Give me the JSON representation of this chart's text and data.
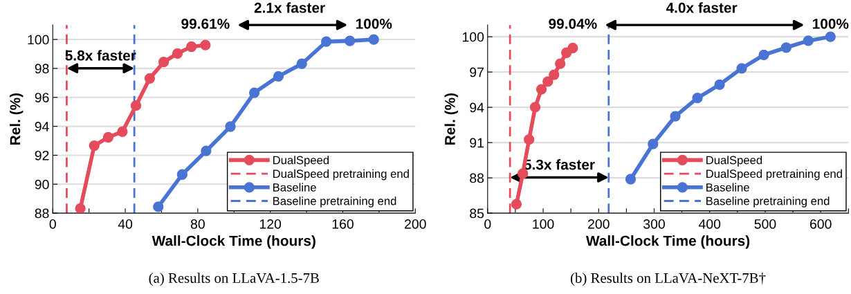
{
  "chart_data": [
    {
      "type": "line",
      "xlabel": "Wall-Clock Time (hours)",
      "ylabel": "Rel. (%)",
      "series": [
        {
          "name": "DualSpeed",
          "color": "#e44c5c",
          "x": [
            15.2,
            22.9,
            30.6,
            38.4,
            45.9,
            53.5,
            61.2,
            68.8,
            76.5,
            84.2
          ],
          "values": [
            88.32,
            92.66,
            93.24,
            93.63,
            95.43,
            97.31,
            98.44,
            99.03,
            99.5,
            99.61
          ]
        },
        {
          "name": "DualSpeed pretraining end",
          "color": "#e44c5c",
          "line_style": "dashed",
          "marker": "none",
          "x": [
            7.7,
            7.7
          ],
          "values": [
            88,
            101
          ]
        },
        {
          "name": "Baseline",
          "color": "#4a74d4",
          "x": [
            58.2,
            71.4,
            84.6,
            98.0,
            111.2,
            124.5,
            137.4,
            150.9,
            163.9,
            177.1
          ],
          "values": [
            88.44,
            90.67,
            92.3,
            93.98,
            96.32,
            97.45,
            98.32,
            99.85,
            99.9,
            100.0
          ]
        },
        {
          "name": "Baseline pretraining end",
          "color": "#4a74d4",
          "line_style": "dashed",
          "marker": "none",
          "x": [
            45.0,
            45.0
          ],
          "values": [
            88,
            101
          ]
        }
      ],
      "annotations": [
        "99.61%",
        "100%",
        "2.1x faster",
        "5.8x faster",
        "(a) Results on LLaVA-1.5-7B"
      ],
      "xlim": [
        0,
        200
      ],
      "ylim": [
        88,
        101
      ],
      "xticks": [
        0,
        {
          "value": 20,
          "label": null
        },
        40,
        {
          "value": 60,
          "label": null
        },
        80,
        {
          "value": 100,
          "label": null
        },
        120,
        {
          "value": 140,
          "label": null
        },
        160,
        {
          "value": 180,
          "label": null
        },
        200
      ],
      "yticks": [
        88,
        90,
        92,
        94,
        96,
        98,
        100
      ],
      "grid": "y",
      "legend": "bottom right",
      "marker": "circle",
      "line_style": "solid"
    },
    {
      "type": "line",
      "xlabel": "Wall-Clock Time (hours)",
      "ylabel": "Rel. (%)",
      "series": [
        {
          "name": "DualSpeed",
          "color": "#e44c5c",
          "x": [
            51.9,
            63.4,
            74.6,
            85.7,
            96.9,
            108.4,
            119.6,
            130.7,
            141.9,
            153.4
          ],
          "values": [
            85.76,
            88.37,
            91.26,
            94.01,
            95.53,
            96.19,
            96.77,
            97.71,
            98.64,
            99.04
          ]
        },
        {
          "name": "DualSpeed pretraining end",
          "color": "#e44c5c",
          "line_style": "dashed",
          "marker": "none",
          "x": [
            40.3,
            40.3
          ],
          "values": [
            85,
            101
          ]
        },
        {
          "name": "Baseline",
          "color": "#4a74d4",
          "x": [
            257.6,
            297.9,
            338.1,
            378.0,
            417.9,
            457.7,
            497.6,
            537.9,
            577.7,
            617.6
          ],
          "values": [
            87.89,
            90.88,
            93.24,
            94.79,
            95.93,
            97.31,
            98.46,
            99.08,
            99.66,
            100.0
          ]
        },
        {
          "name": "Baseline pretraining end",
          "color": "#4a74d4",
          "line_style": "dashed",
          "marker": "none",
          "x": [
            218.1,
            218.1
          ],
          "values": [
            85,
            101
          ]
        }
      ],
      "annotations": [
        "99.04%",
        "100%",
        "4.0x faster",
        "5.3x faster",
        "(b) Results on LLaVA-NeXT-7B†"
      ],
      "xlim": [
        0,
        650
      ],
      "ylim": [
        85,
        101
      ],
      "xticks": [
        0,
        {
          "value": 50,
          "label": null
        },
        100,
        {
          "value": 150,
          "label": null
        },
        200,
        {
          "value": 250,
          "label": null
        },
        300,
        {
          "value": 350,
          "label": null
        },
        400,
        {
          "value": 450,
          "label": null
        },
        500,
        {
          "value": 550,
          "label": null
        },
        600,
        {
          "value": 650,
          "label": null
        }
      ],
      "yticks": [
        85,
        88,
        91,
        94,
        97,
        100
      ],
      "grid": "y",
      "legend": "bottom right",
      "marker": "circle",
      "line_style": "solid"
    }
  ]
}
